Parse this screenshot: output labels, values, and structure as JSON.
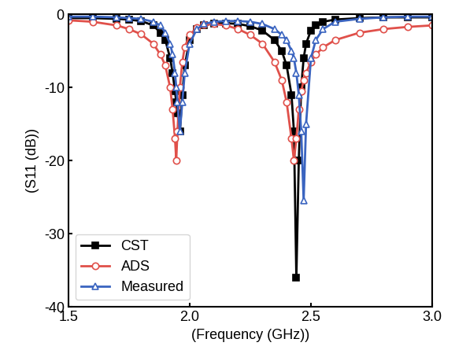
{
  "chart_data": {
    "type": "line",
    "x_label": "(Frequency (GHz))",
    "y_label": "(S11 (dB))",
    "x": [
      1.5,
      1.6,
      1.7,
      1.75,
      1.8,
      1.85,
      1.88,
      1.9,
      1.92,
      1.93,
      1.94,
      1.945,
      1.95,
      1.96,
      1.97,
      1.98,
      2.0,
      2.03,
      2.06,
      2.1,
      2.15,
      2.2,
      2.25,
      2.3,
      2.35,
      2.38,
      2.4,
      2.42,
      2.43,
      2.44,
      2.45,
      2.46,
      2.47,
      2.48,
      2.5,
      2.52,
      2.55,
      2.6,
      2.7,
      2.8,
      2.9,
      3.0
    ],
    "series": [
      {
        "name": "CST",
        "color": "#000000",
        "marker": "square",
        "values": [
          -0.5,
          -0.5,
          -0.6,
          -0.7,
          -0.9,
          -1.5,
          -2.5,
          -3.5,
          -6,
          -8,
          -10.5,
          -12,
          -13.5,
          -16,
          -11,
          -7,
          -3.5,
          -2,
          -1.5,
          -1.2,
          -1.2,
          -1.3,
          -1.6,
          -2.2,
          -3.5,
          -5,
          -7,
          -11,
          -16,
          -36,
          -20,
          -10,
          -6,
          -4,
          -2.2,
          -1.5,
          -1,
          -0.7,
          -0.5,
          -0.4,
          -0.4,
          -0.4
        ]
      },
      {
        "name": "ADS",
        "color": "#e0504a",
        "marker": "circle",
        "values": [
          -0.8,
          -1.0,
          -1.5,
          -2,
          -2.7,
          -4,
          -5.5,
          -7,
          -10,
          -13,
          -17,
          -20,
          -16,
          -10,
          -6.5,
          -4.5,
          -2.8,
          -1.8,
          -1.4,
          -1.3,
          -1.5,
          -2,
          -2.8,
          -4,
          -6.5,
          -9,
          -12,
          -17,
          -20,
          -17,
          -13,
          -10.5,
          -9,
          -8,
          -6.5,
          -5.5,
          -4.5,
          -3.5,
          -2.5,
          -2,
          -1.7,
          -1.5
        ]
      },
      {
        "name": "Measured",
        "color": "#3a64c0",
        "marker": "triangle",
        "values": [
          -0.3,
          -0.3,
          -0.4,
          -0.5,
          -0.6,
          -1.0,
          -1.5,
          -2.5,
          -4,
          -5.5,
          -8,
          -10,
          -12,
          -16,
          -12,
          -8,
          -4,
          -2,
          -1.3,
          -1,
          -0.9,
          -0.9,
          -1,
          -1.3,
          -2,
          -2.8,
          -3.5,
          -5,
          -6,
          -8,
          -11,
          -16,
          -25.5,
          -15,
          -6,
          -3.5,
          -2,
          -1,
          -0.6,
          -0.4,
          -0.3,
          -0.3
        ]
      }
    ],
    "xlim": [
      1.5,
      3.0
    ],
    "xticks": [
      1.5,
      2.0,
      2.5,
      3.0
    ],
    "ylim": [
      -40,
      0
    ],
    "yticks": [
      -40,
      -30,
      -20,
      -10,
      0
    ],
    "legend": "lower left",
    "grid": false
  }
}
